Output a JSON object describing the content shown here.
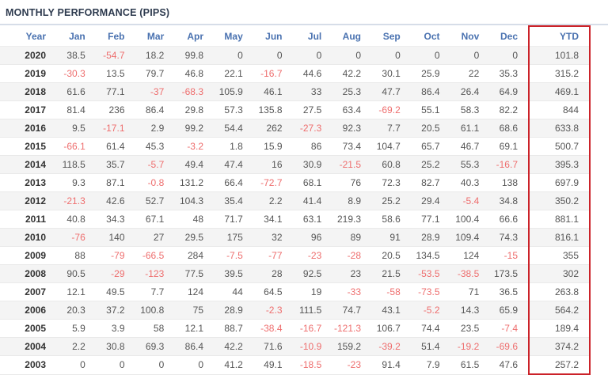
{
  "colors": {
    "header_text": "#4a72b0",
    "title_text": "#2d3a4e",
    "title_rule": "#d6dde8",
    "value_text": "#555555",
    "year_text": "#333333",
    "negative": "#ee6e6e",
    "ytd_box": "#cb2229",
    "alt_row_bg": "#f4f4f4"
  },
  "chart_data": {
    "type": "table",
    "title": "MONTHLY PERFORMANCE (PIPS)",
    "columns": [
      "Year",
      "Jan",
      "Feb",
      "Mar",
      "Apr",
      "May",
      "Jun",
      "Jul",
      "Aug",
      "Sep",
      "Oct",
      "Nov",
      "Dec",
      "YTD"
    ],
    "rows": [
      {
        "year": "2020",
        "values": [
          "38.5",
          "-54.7",
          "18.2",
          "99.8",
          "0",
          "0",
          "0",
          "0",
          "0",
          "0",
          "0",
          "0"
        ],
        "ytd": "101.8"
      },
      {
        "year": "2019",
        "values": [
          "-30.3",
          "13.5",
          "79.7",
          "46.8",
          "22.1",
          "-16.7",
          "44.6",
          "42.2",
          "30.1",
          "25.9",
          "22",
          "35.3"
        ],
        "ytd": "315.2"
      },
      {
        "year": "2018",
        "values": [
          "61.6",
          "77.1",
          "-37",
          "-68.3",
          "105.9",
          "46.1",
          "33",
          "25.3",
          "47.7",
          "86.4",
          "26.4",
          "64.9"
        ],
        "ytd": "469.1"
      },
      {
        "year": "2017",
        "values": [
          "81.4",
          "236",
          "86.4",
          "29.8",
          "57.3",
          "135.8",
          "27.5",
          "63.4",
          "-69.2",
          "55.1",
          "58.3",
          "82.2"
        ],
        "ytd": "844"
      },
      {
        "year": "2016",
        "values": [
          "9.5",
          "-17.1",
          "2.9",
          "99.2",
          "54.4",
          "262",
          "-27.3",
          "92.3",
          "7.7",
          "20.5",
          "61.1",
          "68.6"
        ],
        "ytd": "633.8"
      },
      {
        "year": "2015",
        "values": [
          "-66.1",
          "61.4",
          "45.3",
          "-3.2",
          "1.8",
          "15.9",
          "86",
          "73.4",
          "104.7",
          "65.7",
          "46.7",
          "69.1"
        ],
        "ytd": "500.7"
      },
      {
        "year": "2014",
        "values": [
          "118.5",
          "35.7",
          "-5.7",
          "49.4",
          "47.4",
          "16",
          "30.9",
          "-21.5",
          "60.8",
          "25.2",
          "55.3",
          "-16.7"
        ],
        "ytd": "395.3"
      },
      {
        "year": "2013",
        "values": [
          "9.3",
          "87.1",
          "-0.8",
          "131.2",
          "66.4",
          "-72.7",
          "68.1",
          "76",
          "72.3",
          "82.7",
          "40.3",
          "138"
        ],
        "ytd": "697.9"
      },
      {
        "year": "2012",
        "values": [
          "-21.3",
          "42.6",
          "52.7",
          "104.3",
          "35.4",
          "2.2",
          "41.4",
          "8.9",
          "25.2",
          "29.4",
          "-5.4",
          "34.8"
        ],
        "ytd": "350.2"
      },
      {
        "year": "2011",
        "values": [
          "40.8",
          "34.3",
          "67.1",
          "48",
          "71.7",
          "34.1",
          "63.1",
          "219.3",
          "58.6",
          "77.1",
          "100.4",
          "66.6"
        ],
        "ytd": "881.1"
      },
      {
        "year": "2010",
        "values": [
          "-76",
          "140",
          "27",
          "29.5",
          "175",
          "32",
          "96",
          "89",
          "91",
          "28.9",
          "109.4",
          "74.3"
        ],
        "ytd": "816.1"
      },
      {
        "year": "2009",
        "values": [
          "88",
          "-79",
          "-66.5",
          "284",
          "-7.5",
          "-77",
          "-23",
          "-28",
          "20.5",
          "134.5",
          "124",
          "-15"
        ],
        "ytd": "355"
      },
      {
        "year": "2008",
        "values": [
          "90.5",
          "-29",
          "-123",
          "77.5",
          "39.5",
          "28",
          "92.5",
          "23",
          "21.5",
          "-53.5",
          "-38.5",
          "173.5"
        ],
        "ytd": "302"
      },
      {
        "year": "2007",
        "values": [
          "12.1",
          "49.5",
          "7.7",
          "124",
          "44",
          "64.5",
          "19",
          "-33",
          "-58",
          "-73.5",
          "71",
          "36.5"
        ],
        "ytd": "263.8"
      },
      {
        "year": "2006",
        "values": [
          "20.3",
          "37.2",
          "100.8",
          "75",
          "28.9",
          "-2.3",
          "111.5",
          "74.7",
          "43.1",
          "-5.2",
          "14.3",
          "65.9"
        ],
        "ytd": "564.2"
      },
      {
        "year": "2005",
        "values": [
          "5.9",
          "3.9",
          "58",
          "12.1",
          "88.7",
          "-38.4",
          "-16.7",
          "-121.3",
          "106.7",
          "74.4",
          "23.5",
          "-7.4"
        ],
        "ytd": "189.4"
      },
      {
        "year": "2004",
        "values": [
          "2.2",
          "30.8",
          "69.3",
          "86.4",
          "42.2",
          "71.6",
          "-10.9",
          "159.2",
          "-39.2",
          "51.4",
          "-19.2",
          "-69.6"
        ],
        "ytd": "374.2"
      },
      {
        "year": "2003",
        "values": [
          "0",
          "0",
          "0",
          "0",
          "41.2",
          "49.1",
          "-18.5",
          "-23",
          "91.4",
          "7.9",
          "61.5",
          "47.6"
        ],
        "ytd": "257.2"
      }
    ]
  }
}
